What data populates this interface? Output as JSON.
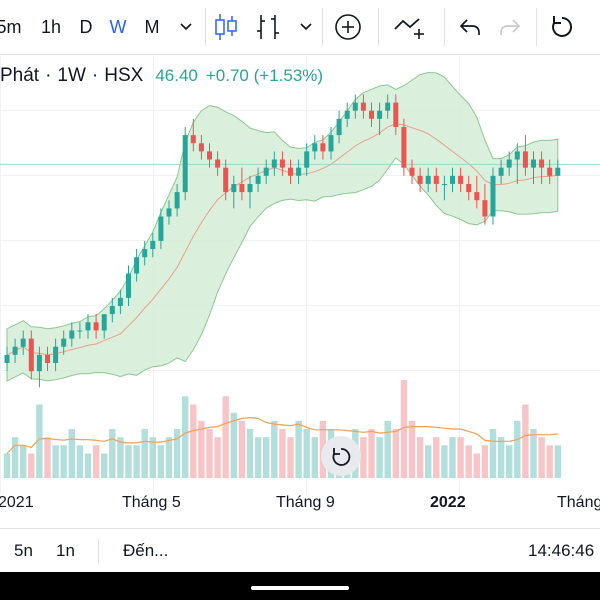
{
  "toolbar": {
    "intervals": [
      "5m",
      "1h",
      "D",
      "W",
      "M"
    ],
    "active_interval": "W"
  },
  "legend": {
    "symbol_name": "Phát",
    "timeframe": "1W",
    "exchange": "HSX",
    "price": "46.40",
    "change": "+0.70 (+1.53%)"
  },
  "xaxis": {
    "labels": [
      "2021",
      "Tháng 5",
      "Tháng 9",
      "2022",
      "Tháng"
    ]
  },
  "bottombar": {
    "range_5y": "5n",
    "range_1y": "1n",
    "goto": "Đến...",
    "clock": "14:46:46"
  },
  "colors": {
    "up": "#26a69a",
    "down": "#ef5350",
    "up_volume": "#b2dfdb",
    "down_volume": "#f7c5c7",
    "band_fill": "#d4edd6",
    "band_line": "#8bc98f",
    "ma_line": "#e8a08a",
    "volume_ma": "#f5a052",
    "price_line": "#9fd6cf",
    "accent": "#2962ff"
  },
  "chart_data": {
    "type": "candlestick",
    "series": [
      {
        "name": "candles",
        "values": [
          [
            22,
            24,
            21,
            23
          ],
          [
            23,
            25,
            22,
            24
          ],
          [
            24,
            26,
            23,
            25
          ],
          [
            25,
            26,
            20,
            21
          ],
          [
            21,
            24,
            19,
            23
          ],
          [
            23,
            24,
            21,
            22
          ],
          [
            22,
            25,
            21,
            24
          ],
          [
            24,
            26,
            23,
            25
          ],
          [
            25,
            27,
            24,
            26
          ],
          [
            26,
            27,
            25,
            26
          ],
          [
            26,
            28,
            25,
            27
          ],
          [
            27,
            28,
            25,
            26
          ],
          [
            26,
            28,
            25,
            28
          ],
          [
            28,
            30,
            27,
            29
          ],
          [
            29,
            31,
            28,
            30
          ],
          [
            30,
            34,
            29,
            33
          ],
          [
            33,
            36,
            32,
            35
          ],
          [
            35,
            37,
            34,
            36
          ],
          [
            36,
            38,
            35,
            37
          ],
          [
            37,
            41,
            36,
            40
          ],
          [
            40,
            42,
            39,
            41
          ],
          [
            41,
            44,
            40,
            43
          ],
          [
            43,
            51,
            42,
            50
          ],
          [
            50,
            52,
            48,
            49
          ],
          [
            49,
            50,
            47,
            48
          ],
          [
            48,
            49,
            46,
            47
          ],
          [
            47,
            48,
            45,
            46
          ],
          [
            46,
            47,
            42,
            43
          ],
          [
            43,
            45,
            41,
            44
          ],
          [
            44,
            46,
            42,
            43
          ],
          [
            43,
            45,
            41,
            44
          ],
          [
            44,
            46,
            43,
            45
          ],
          [
            45,
            47,
            44,
            46
          ],
          [
            46,
            48,
            45,
            47
          ],
          [
            47,
            48,
            45,
            46
          ],
          [
            46,
            47,
            44,
            45
          ],
          [
            45,
            47,
            44,
            46
          ],
          [
            46,
            49,
            45,
            48
          ],
          [
            48,
            50,
            47,
            49
          ],
          [
            49,
            50,
            47,
            48
          ],
          [
            48,
            51,
            47,
            50
          ],
          [
            50,
            53,
            49,
            52
          ],
          [
            52,
            54,
            51,
            53
          ],
          [
            53,
            55,
            52,
            54
          ],
          [
            54,
            55,
            52,
            53
          ],
          [
            53,
            54,
            51,
            52
          ],
          [
            52,
            54,
            50,
            53
          ],
          [
            53,
            55,
            52,
            54
          ],
          [
            54,
            55,
            50,
            51
          ],
          [
            51,
            52,
            45,
            46
          ],
          [
            46,
            47,
            44,
            45
          ],
          [
            45,
            46,
            43,
            44
          ],
          [
            44,
            46,
            43,
            45
          ],
          [
            45,
            46,
            43,
            44
          ],
          [
            44,
            45,
            42,
            44
          ],
          [
            44,
            46,
            43,
            45
          ],
          [
            45,
            46,
            43,
            44
          ],
          [
            44,
            45,
            42,
            43
          ],
          [
            43,
            45,
            41,
            42
          ],
          [
            42,
            44,
            39,
            40
          ],
          [
            40,
            46,
            39,
            45
          ],
          [
            45,
            47,
            44,
            46
          ],
          [
            46,
            48,
            45,
            47
          ],
          [
            47,
            49,
            44,
            48
          ],
          [
            48,
            50,
            45,
            46
          ],
          [
            46,
            48,
            44,
            47
          ],
          [
            47,
            48,
            44,
            46
          ],
          [
            46,
            47,
            44,
            45
          ],
          [
            45,
            47,
            45,
            46
          ]
        ]
      },
      {
        "name": "volume",
        "values": [
          3,
          5,
          4,
          3,
          9,
          5,
          4,
          4,
          6,
          4,
          3,
          4,
          3,
          6,
          5,
          4,
          4,
          6,
          5,
          4,
          5,
          6,
          10,
          9,
          7,
          6,
          5,
          10,
          8,
          7,
          6,
          5,
          5,
          7,
          6,
          5,
          7,
          6,
          5,
          7,
          6,
          5,
          4,
          6,
          5,
          6,
          5,
          7,
          6,
          12,
          7,
          5,
          4,
          5,
          4,
          5,
          5,
          4,
          3,
          4,
          6,
          5,
          4,
          7,
          9,
          6,
          5,
          4,
          4
        ]
      }
    ],
    "ylim": [
      15,
      58
    ],
    "volume_ylim": [
      0,
      12
    ],
    "bollinger": true,
    "moving_average": true,
    "last_price": 46.4
  }
}
